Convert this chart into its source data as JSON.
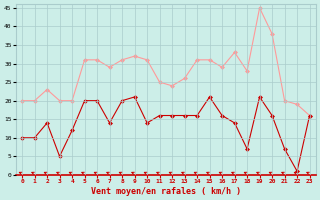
{
  "x": [
    0,
    1,
    2,
    3,
    4,
    5,
    6,
    7,
    8,
    9,
    10,
    11,
    12,
    13,
    14,
    15,
    16,
    17,
    18,
    19,
    20,
    21,
    22,
    23
  ],
  "vent_moyen": [
    10,
    10,
    14,
    5,
    12,
    20,
    20,
    14,
    20,
    21,
    14,
    16,
    16,
    16,
    16,
    21,
    16,
    14,
    7,
    21,
    16,
    7,
    1,
    16
  ],
  "rafales": [
    20,
    20,
    23,
    20,
    20,
    31,
    31,
    29,
    31,
    32,
    31,
    25,
    24,
    26,
    31,
    31,
    29,
    33,
    28,
    45,
    38,
    20,
    19,
    16
  ],
  "bg_color": "#cceee8",
  "grid_color": "#aacccc",
  "line_color_moyen": "#cc0000",
  "line_color_rafales": "#ff9999",
  "xlabel": "Vent moyen/en rafales ( km/h )",
  "ylabel_ticks": [
    0,
    5,
    10,
    15,
    20,
    25,
    30,
    35,
    40,
    45
  ],
  "xlim": [
    -0.5,
    23.5
  ],
  "ylim": [
    0,
    46
  ]
}
